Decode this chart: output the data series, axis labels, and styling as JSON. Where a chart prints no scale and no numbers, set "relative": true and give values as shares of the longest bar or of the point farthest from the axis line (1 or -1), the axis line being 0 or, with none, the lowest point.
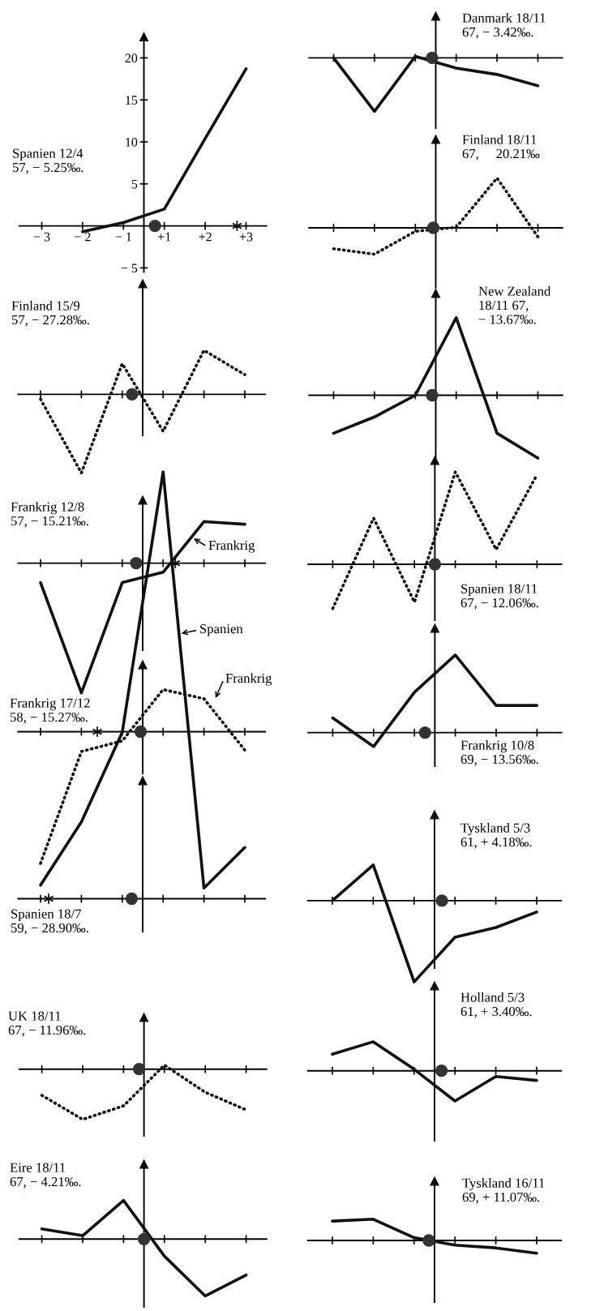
{
  "chart_data": [
    {
      "type": "line",
      "title": "Spanien 12/4\n57, − 5.25‰.",
      "xlim": [
        -3.05,
        3.0
      ],
      "xticks": [
        {
          "value": -2.5,
          "label": "− 3"
        },
        {
          "value": -1.5,
          "label": "− 2"
        },
        {
          "value": -0.5,
          "label": "− 1"
        },
        {
          "value": 0.5,
          "label": "+1"
        },
        {
          "value": 1.5,
          "label": "+2"
        },
        {
          "value": 2.5,
          "label": "+3"
        }
      ],
      "ylim": [
        -5.5,
        22.5
      ],
      "yticks": [
        {
          "value": -5,
          "label": "− 5"
        },
        5,
        10,
        15,
        20
      ],
      "line_style": "solid",
      "series": [
        {
          "color": "#111111",
          "x": [
            -1.5,
            -0.5,
            0.5,
            1.5,
            2.5
          ],
          "values": [
            -0.7,
            0.4,
            2.0,
            10.4,
            18.7
          ]
        }
      ]
    },
    {
      "type": "line",
      "title": "Finland 15/9\n57, − 27.28‰.",
      "relative": true,
      "categories": [
        null,
        null,
        null,
        null,
        null,
        null
      ],
      "line_style": "dotted",
      "series": [
        {
          "color": "#111111",
          "values": [
            -0.06,
            -1,
            0.39,
            -0.47,
            0.56,
            0.25
          ]
        }
      ]
    },
    {
      "type": "line",
      "title": "Frankrig 12/8\n57, − 15.21‰.",
      "relative": true,
      "categories": [
        null,
        null,
        null,
        null,
        null,
        null
      ],
      "line_style": "solid",
      "annotations": [
        "Frankrig"
      ],
      "series": [
        {
          "color": "#111111",
          "values": [
            -0.15,
            -1,
            -0.15,
            -0.07,
            0.32,
            0.3
          ]
        }
      ]
    },
    {
      "type": "line",
      "title": "Frankrig 17/12\n58, − 15.27‰.",
      "relative": true,
      "categories": [
        null,
        null,
        null,
        null,
        null,
        null
      ],
      "line_style": "dotted",
      "annotations": [
        "Frankrig"
      ],
      "series": [
        {
          "color": "#111111",
          "values": [
            -1,
            -0.15,
            -0.07,
            0.32,
            0.25,
            -0.14
          ]
        }
      ]
    },
    {
      "type": "line",
      "title": "Spanien 18/7\n59, − 28.90‰.",
      "relative": true,
      "categories": [
        null,
        null,
        null,
        null,
        null,
        null
      ],
      "line_style": "solid",
      "annotations": [
        "Spanien"
      ],
      "series": [
        {
          "color": "#111111",
          "values": [
            0.032,
            0.18,
            0.39,
            1,
            0.025,
            0.12
          ]
        }
      ]
    },
    {
      "type": "line",
      "title": "UK 18/11\n67, − 11.96‰.",
      "relative": true,
      "categories": [
        null,
        null,
        null,
        null,
        null,
        null
      ],
      "line_style": "dotted",
      "series": [
        {
          "color": "#111111",
          "values": [
            -0.52,
            -1,
            -0.73,
            0.08,
            -0.46,
            -0.81
          ]
        }
      ]
    },
    {
      "type": "line",
      "title": "Eire 18/11\n67, − 4.21‰.",
      "relative": true,
      "categories": [
        null,
        null,
        null,
        null,
        null,
        null
      ],
      "line_style": "solid",
      "series": [
        {
          "color": "#111111",
          "values": [
            0.18,
            0.06,
            0.68,
            -0.3,
            -1,
            -0.63
          ]
        }
      ]
    },
    {
      "type": "line",
      "title": "Danmark 18/11\n67, − 3.42‰.",
      "relative": true,
      "categories": [
        null,
        null,
        null,
        null,
        null,
        null
      ],
      "line_style": "solid",
      "series": [
        {
          "color": "#111111",
          "values": [
            0,
            -1,
            0.03,
            -0.19,
            -0.31,
            -0.52
          ]
        }
      ]
    },
    {
      "type": "line",
      "title": "Finland 18/11\n67,     20.21‰",
      "relative": true,
      "categories": [
        null,
        null,
        null,
        null,
        null,
        null
      ],
      "line_style": "dotted",
      "series": [
        {
          "color": "#111111",
          "values": [
            -0.42,
            -0.53,
            -0.07,
            0.01,
            1,
            -0.18
          ]
        }
      ]
    },
    {
      "type": "line",
      "title": "New Zealand\n18/11 67,\n− 13.67‰.",
      "relative": true,
      "categories": [
        null,
        null,
        null,
        null,
        null,
        null
      ],
      "line_style": "solid",
      "series": [
        {
          "color": "#111111",
          "values": [
            -0.49,
            -0.28,
            0,
            1,
            -0.49,
            -0.81
          ]
        }
      ]
    },
    {
      "type": "line",
      "title": "Spanien 18/11\n67, − 12.06‰.",
      "relative": true,
      "categories": [
        null,
        null,
        null,
        null,
        null,
        null
      ],
      "line_style": "dotted",
      "series": [
        {
          "color": "#111111",
          "values": [
            -0.48,
            0.5,
            -0.41,
            1,
            0.16,
            0.97
          ]
        }
      ]
    },
    {
      "type": "line",
      "title": "Frankrig 10/8\n69, − 13.56‰.",
      "relative": true,
      "categories": [
        null,
        null,
        null,
        null,
        null,
        null
      ],
      "line_style": "solid",
      "series": [
        {
          "color": "#111111",
          "values": [
            0.19,
            -0.18,
            0.52,
            1,
            0.35,
            0.35
          ]
        }
      ]
    },
    {
      "type": "line",
      "title": "Tyskland 5/3\n61, + 4.18‰.",
      "relative": true,
      "categories": [
        null,
        null,
        null,
        null,
        null,
        null
      ],
      "line_style": "solid",
      "series": [
        {
          "color": "#111111",
          "values": [
            0,
            0.44,
            -1,
            -0.45,
            -0.33,
            -0.14
          ]
        }
      ]
    },
    {
      "type": "line",
      "title": "Holland 5/3\n61, + 3.40‰.",
      "relative": true,
      "categories": [
        null,
        null,
        null,
        null,
        null,
        null
      ],
      "line_style": "solid",
      "series": [
        {
          "color": "#111111",
          "values": [
            0.55,
            0.96,
            0.05,
            -1,
            -0.19,
            -0.32
          ]
        }
      ]
    },
    {
      "type": "line",
      "title": "Tyskland 16/11\n69, + 11.07‰.",
      "relative": true,
      "categories": [
        null,
        null,
        null,
        null,
        null,
        null
      ],
      "line_style": "solid",
      "series": [
        {
          "color": "#111111",
          "values": [
            0.91,
            1,
            0.13,
            -0.22,
            -0.35,
            -0.6
          ]
        }
      ]
    }
  ]
}
